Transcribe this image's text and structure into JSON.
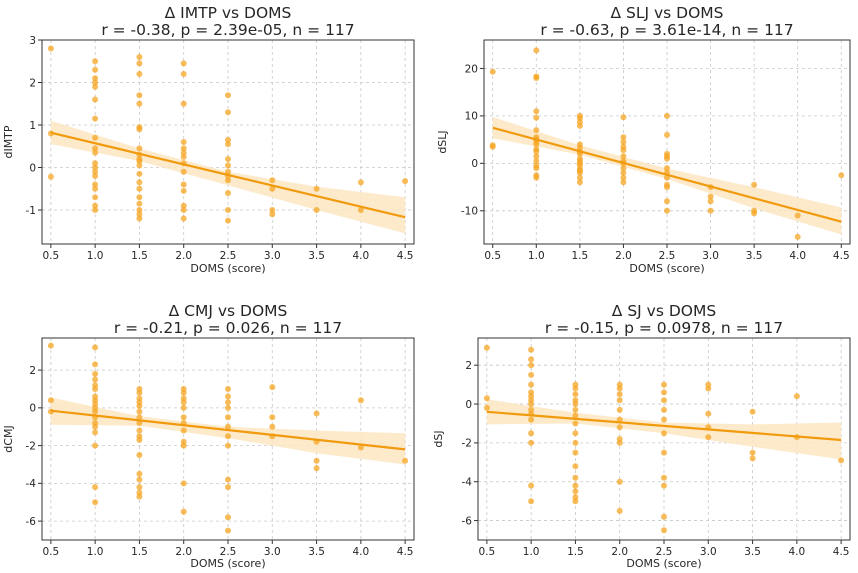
{
  "colors": {
    "point": "#f5a623",
    "line": "#f29a0d",
    "band": "#fde6c2"
  },
  "chart_data": [
    {
      "type": "scatter",
      "title_line1": "Δ IMTP vs DOMS",
      "title_line2": "r = -0.38, p = 2.39e-05, n = 117",
      "xlabel": "DOMS (score)",
      "ylabel": "dIMTP",
      "xlim": [
        0.4,
        4.6
      ],
      "ylim": [
        -1.8,
        3.0
      ],
      "xticks": [
        0.5,
        1.0,
        1.5,
        2.0,
        2.5,
        3.0,
        3.5,
        4.0,
        4.5
      ],
      "yticks": [
        -1,
        0,
        1,
        2,
        3
      ],
      "grid": true,
      "regression": {
        "x": [
          0.5,
          4.5
        ],
        "y": [
          0.82,
          -1.17
        ]
      },
      "band": {
        "x": [
          0.5,
          1.5,
          2.5,
          3.5,
          4.5
        ],
        "upper": [
          1.1,
          0.45,
          -0.1,
          -0.45,
          -0.7
        ],
        "lower": [
          0.55,
          0.15,
          -0.42,
          -1.0,
          -1.55
        ]
      },
      "points": [
        [
          0.5,
          2.8
        ],
        [
          0.5,
          0.8
        ],
        [
          0.5,
          -0.22
        ],
        [
          1.0,
          2.5
        ],
        [
          1.0,
          2.3
        ],
        [
          1.0,
          2.1
        ],
        [
          1.0,
          2.0
        ],
        [
          1.0,
          1.9
        ],
        [
          1.0,
          1.6
        ],
        [
          1.0,
          1.15
        ],
        [
          1.0,
          0.7
        ],
        [
          1.0,
          0.45
        ],
        [
          1.0,
          0.35
        ],
        [
          1.0,
          0.1
        ],
        [
          1.0,
          0.0
        ],
        [
          1.0,
          -0.1
        ],
        [
          1.0,
          -0.2
        ],
        [
          1.0,
          -0.4
        ],
        [
          1.0,
          -0.5
        ],
        [
          1.0,
          -0.7
        ],
        [
          1.0,
          -0.9
        ],
        [
          1.0,
          -1.0
        ],
        [
          1.5,
          2.6
        ],
        [
          1.5,
          2.45
        ],
        [
          1.5,
          2.2
        ],
        [
          1.5,
          1.7
        ],
        [
          1.5,
          1.5
        ],
        [
          1.5,
          0.95
        ],
        [
          1.5,
          0.9
        ],
        [
          1.5,
          0.45
        ],
        [
          1.5,
          0.3
        ],
        [
          1.5,
          0.2
        ],
        [
          1.5,
          0.15
        ],
        [
          1.5,
          0.05
        ],
        [
          1.5,
          -0.15
        ],
        [
          1.5,
          -0.35
        ],
        [
          1.5,
          -0.5
        ],
        [
          1.5,
          -0.7
        ],
        [
          1.5,
          -0.85
        ],
        [
          1.5,
          -1.0
        ],
        [
          1.5,
          -1.1
        ],
        [
          1.5,
          -1.2
        ],
        [
          2.0,
          2.45
        ],
        [
          2.0,
          2.2
        ],
        [
          2.0,
          1.5
        ],
        [
          2.0,
          0.6
        ],
        [
          2.0,
          0.45
        ],
        [
          2.0,
          0.35
        ],
        [
          2.0,
          0.25
        ],
        [
          2.0,
          0.1
        ],
        [
          2.0,
          -0.1
        ],
        [
          2.0,
          -0.4
        ],
        [
          2.0,
          -0.55
        ],
        [
          2.0,
          -0.9
        ],
        [
          2.0,
          -1.0
        ],
        [
          2.0,
          -1.2
        ],
        [
          2.5,
          1.7
        ],
        [
          2.5,
          1.3
        ],
        [
          2.5,
          0.65
        ],
        [
          2.5,
          0.55
        ],
        [
          2.5,
          0.2
        ],
        [
          2.5,
          0.05
        ],
        [
          2.5,
          -0.1
        ],
        [
          2.5,
          -0.2
        ],
        [
          2.5,
          -0.3
        ],
        [
          2.5,
          -0.6
        ],
        [
          2.5,
          -1.0
        ],
        [
          2.5,
          -1.25
        ],
        [
          3.0,
          -0.3
        ],
        [
          3.0,
          -0.5
        ],
        [
          3.0,
          -1.0
        ],
        [
          3.0,
          -1.1
        ],
        [
          3.5,
          -0.5
        ],
        [
          3.5,
          -1.0
        ],
        [
          4.0,
          -0.35
        ],
        [
          4.0,
          -1.0
        ],
        [
          4.5,
          -0.32
        ]
      ]
    },
    {
      "type": "scatter",
      "title_line1": "Δ SLJ vs DOMS",
      "title_line2": "r = -0.63, p = 3.61e-14, n = 117",
      "xlabel": "DOMS (score)",
      "ylabel": "dSLJ",
      "xlim": [
        0.4,
        4.6
      ],
      "ylim": [
        -17.0,
        26.0
      ],
      "xticks": [
        0.5,
        1.0,
        1.5,
        2.0,
        2.5,
        3.0,
        3.5,
        4.0,
        4.5
      ],
      "yticks": [
        -10,
        0,
        10,
        20
      ],
      "grid": true,
      "regression": {
        "x": [
          0.5,
          4.5
        ],
        "y": [
          7.5,
          -12.3
        ]
      },
      "band": {
        "x": [
          0.5,
          1.5,
          2.5,
          3.5,
          4.5
        ],
        "upper": [
          9.8,
          3.8,
          -1.1,
          -5.0,
          -9.3
        ],
        "lower": [
          5.3,
          1.8,
          -3.3,
          -9.5,
          -15.0
        ]
      },
      "points": [
        [
          0.5,
          19.3
        ],
        [
          0.5,
          3.8
        ],
        [
          0.5,
          3.5
        ],
        [
          1.0,
          23.8
        ],
        [
          1.0,
          18.3
        ],
        [
          1.0,
          18.0
        ],
        [
          1.0,
          11.0
        ],
        [
          1.0,
          9.6
        ],
        [
          1.0,
          7.0
        ],
        [
          1.0,
          5.5
        ],
        [
          1.0,
          5.0
        ],
        [
          1.0,
          4.5
        ],
        [
          1.0,
          4.0
        ],
        [
          1.0,
          3.0
        ],
        [
          1.0,
          2.5
        ],
        [
          1.0,
          1.5
        ],
        [
          1.0,
          0.5
        ],
        [
          1.0,
          -0.5
        ],
        [
          1.0,
          -1.0
        ],
        [
          1.0,
          -2.5
        ],
        [
          1.0,
          -3.0
        ],
        [
          1.5,
          10.0
        ],
        [
          1.5,
          9.5
        ],
        [
          1.5,
          8.7
        ],
        [
          1.5,
          7.9
        ],
        [
          1.5,
          4.0
        ],
        [
          1.5,
          3.3
        ],
        [
          1.5,
          2.5
        ],
        [
          1.5,
          2.0
        ],
        [
          1.5,
          1.0
        ],
        [
          1.5,
          0.5
        ],
        [
          1.5,
          0.0
        ],
        [
          1.5,
          -0.5
        ],
        [
          1.5,
          -1.3
        ],
        [
          1.5,
          -1.5
        ],
        [
          1.5,
          -2.0
        ],
        [
          1.5,
          -3.0
        ],
        [
          1.5,
          -4.0
        ],
        [
          2.0,
          9.7
        ],
        [
          2.0,
          5.5
        ],
        [
          2.0,
          4.5
        ],
        [
          2.0,
          3.5
        ],
        [
          2.0,
          2.8
        ],
        [
          2.0,
          1.5
        ],
        [
          2.0,
          0.5
        ],
        [
          2.0,
          0.0
        ],
        [
          2.0,
          -1.0
        ],
        [
          2.0,
          -2.0
        ],
        [
          2.0,
          -3.0
        ],
        [
          2.0,
          -4.0
        ],
        [
          2.5,
          10.0
        ],
        [
          2.5,
          6.0
        ],
        [
          2.5,
          2.0
        ],
        [
          2.5,
          1.5
        ],
        [
          2.5,
          1.0
        ],
        [
          2.5,
          -1.0
        ],
        [
          2.5,
          -2.0
        ],
        [
          2.5,
          -3.0
        ],
        [
          2.5,
          -4.5
        ],
        [
          2.5,
          -5.0
        ],
        [
          2.5,
          -8.0
        ],
        [
          2.5,
          -10.0
        ],
        [
          3.0,
          -5.0
        ],
        [
          3.0,
          -7.0
        ],
        [
          3.0,
          -8.0
        ],
        [
          3.0,
          -10.0
        ],
        [
          3.5,
          -4.5
        ],
        [
          3.5,
          -10.0
        ],
        [
          3.5,
          -10.5
        ],
        [
          4.0,
          -11.0
        ],
        [
          4.0,
          -15.5
        ],
        [
          4.5,
          -2.5
        ]
      ]
    },
    {
      "type": "scatter",
      "title_line1": "Δ CMJ vs DOMS",
      "title_line2": "r = -0.21, p = 0.026, n = 117",
      "xlabel": "DOMS (score)",
      "ylabel": "dCMJ",
      "xlim": [
        0.4,
        4.6
      ],
      "ylim": [
        -7.0,
        3.7
      ],
      "xticks": [
        0.5,
        1.0,
        1.5,
        2.0,
        2.5,
        3.0,
        3.5,
        4.0,
        4.5
      ],
      "yticks": [
        -6,
        -4,
        -2,
        0,
        2
      ],
      "grid": true,
      "regression": {
        "x": [
          0.5,
          4.5
        ],
        "y": [
          -0.15,
          -2.2
        ]
      },
      "band": {
        "x": [
          0.5,
          1.5,
          2.5,
          3.5,
          4.5
        ],
        "upper": [
          0.55,
          -0.45,
          -1.0,
          -1.2,
          -1.35
        ],
        "lower": [
          -0.9,
          -0.95,
          -1.6,
          -2.4,
          -3.0
        ]
      },
      "points": [
        [
          0.5,
          3.3
        ],
        [
          0.5,
          0.4
        ],
        [
          0.5,
          -0.2
        ],
        [
          1.0,
          3.2
        ],
        [
          1.0,
          2.3
        ],
        [
          1.0,
          1.8
        ],
        [
          1.0,
          1.5
        ],
        [
          1.0,
          1.2
        ],
        [
          1.0,
          1.0
        ],
        [
          1.0,
          0.6
        ],
        [
          1.0,
          0.4
        ],
        [
          1.0,
          0.2
        ],
        [
          1.0,
          0.0
        ],
        [
          1.0,
          -0.2
        ],
        [
          1.0,
          -0.5
        ],
        [
          1.0,
          -0.8
        ],
        [
          1.0,
          -1.0
        ],
        [
          1.0,
          -1.3
        ],
        [
          1.0,
          -2.0
        ],
        [
          1.0,
          -4.2
        ],
        [
          1.0,
          -5.0
        ],
        [
          1.5,
          1.0
        ],
        [
          1.5,
          0.8
        ],
        [
          1.5,
          0.5
        ],
        [
          1.5,
          0.3
        ],
        [
          1.5,
          0.1
        ],
        [
          1.5,
          -0.2
        ],
        [
          1.5,
          -0.5
        ],
        [
          1.5,
          -0.8
        ],
        [
          1.5,
          -1.2
        ],
        [
          1.5,
          -1.5
        ],
        [
          1.5,
          -1.7
        ],
        [
          1.5,
          -2.5
        ],
        [
          1.5,
          -3.5
        ],
        [
          1.5,
          -3.8
        ],
        [
          1.5,
          -4.2
        ],
        [
          1.5,
          -4.5
        ],
        [
          1.5,
          -4.7
        ],
        [
          2.0,
          1.0
        ],
        [
          2.0,
          0.8
        ],
        [
          2.0,
          0.5
        ],
        [
          2.0,
          0.3
        ],
        [
          2.0,
          0.0
        ],
        [
          2.0,
          -0.5
        ],
        [
          2.0,
          -0.8
        ],
        [
          2.0,
          -1.2
        ],
        [
          2.0,
          -1.8
        ],
        [
          2.0,
          -2.0
        ],
        [
          2.0,
          -4.0
        ],
        [
          2.0,
          -5.5
        ],
        [
          2.5,
          1.0
        ],
        [
          2.5,
          0.6
        ],
        [
          2.5,
          0.3
        ],
        [
          2.5,
          0.0
        ],
        [
          2.5,
          -0.5
        ],
        [
          2.5,
          -1.0
        ],
        [
          2.5,
          -1.5
        ],
        [
          2.5,
          -2.0
        ],
        [
          2.5,
          -3.8
        ],
        [
          2.5,
          -4.2
        ],
        [
          2.5,
          -5.8
        ],
        [
          2.5,
          -6.5
        ],
        [
          3.0,
          1.1
        ],
        [
          3.0,
          -0.5
        ],
        [
          3.0,
          -1.0
        ],
        [
          3.0,
          -1.5
        ],
        [
          3.5,
          -0.3
        ],
        [
          3.5,
          -1.8
        ],
        [
          3.5,
          -2.8
        ],
        [
          3.5,
          -3.2
        ],
        [
          4.0,
          0.4
        ],
        [
          4.0,
          -2.1
        ],
        [
          4.5,
          -2.8
        ]
      ]
    },
    {
      "type": "scatter",
      "title_line1": "Δ SJ vs DOMS",
      "title_line2": "r = -0.15, p = 0.0978, n = 117",
      "xlabel": "DOMS (score)",
      "ylabel": "dSJ",
      "xlim": [
        0.4,
        4.6
      ],
      "ylim": [
        -7.0,
        3.4
      ],
      "xticks": [
        0.5,
        1.0,
        1.5,
        2.0,
        2.5,
        3.0,
        3.5,
        4.0,
        4.5
      ],
      "yticks": [
        -6,
        -4,
        -2,
        0,
        2
      ],
      "grid": true,
      "regression": {
        "x": [
          0.5,
          4.5
        ],
        "y": [
          -0.4,
          -1.85
        ]
      },
      "band": {
        "x": [
          0.5,
          1.5,
          2.5,
          3.5,
          4.5
        ],
        "upper": [
          0.25,
          -0.45,
          -0.95,
          -1.05,
          -0.95
        ],
        "lower": [
          -1.05,
          -1.0,
          -1.5,
          -2.2,
          -2.85
        ]
      },
      "points": [
        [
          0.5,
          2.9
        ],
        [
          0.5,
          0.3
        ],
        [
          0.5,
          -0.2
        ],
        [
          1.0,
          2.8
        ],
        [
          1.0,
          2.3
        ],
        [
          1.0,
          2.0
        ],
        [
          1.0,
          1.5
        ],
        [
          1.0,
          1.0
        ],
        [
          1.0,
          0.6
        ],
        [
          1.0,
          0.4
        ],
        [
          1.0,
          0.2
        ],
        [
          1.0,
          0.0
        ],
        [
          1.0,
          -0.3
        ],
        [
          1.0,
          -0.5
        ],
        [
          1.0,
          -0.8
        ],
        [
          1.0,
          -1.5
        ],
        [
          1.0,
          -2.0
        ],
        [
          1.0,
          -4.2
        ],
        [
          1.0,
          -5.0
        ],
        [
          1.5,
          1.0
        ],
        [
          1.5,
          0.8
        ],
        [
          1.5,
          0.5
        ],
        [
          1.5,
          0.2
        ],
        [
          1.5,
          0.0
        ],
        [
          1.5,
          -0.3
        ],
        [
          1.5,
          -0.6
        ],
        [
          1.5,
          -1.0
        ],
        [
          1.5,
          -1.5
        ],
        [
          1.5,
          -2.0
        ],
        [
          1.5,
          -2.5
        ],
        [
          1.5,
          -3.2
        ],
        [
          1.5,
          -3.8
        ],
        [
          1.5,
          -4.2
        ],
        [
          1.5,
          -4.5
        ],
        [
          1.5,
          -4.8
        ],
        [
          1.5,
          -5.0
        ],
        [
          2.0,
          1.0
        ],
        [
          2.0,
          0.8
        ],
        [
          2.0,
          0.5
        ],
        [
          2.0,
          0.2
        ],
        [
          2.0,
          -0.3
        ],
        [
          2.0,
          -0.8
        ],
        [
          2.0,
          -1.2
        ],
        [
          2.0,
          -1.8
        ],
        [
          2.0,
          -2.0
        ],
        [
          2.0,
          -4.0
        ],
        [
          2.0,
          -5.5
        ],
        [
          2.5,
          1.0
        ],
        [
          2.5,
          0.6
        ],
        [
          2.5,
          0.2
        ],
        [
          2.5,
          -0.3
        ],
        [
          2.5,
          -0.8
        ],
        [
          2.5,
          -1.5
        ],
        [
          2.5,
          -2.5
        ],
        [
          2.5,
          -3.8
        ],
        [
          2.5,
          -4.2
        ],
        [
          2.5,
          -5.8
        ],
        [
          2.5,
          -6.5
        ],
        [
          3.0,
          1.0
        ],
        [
          3.0,
          0.8
        ],
        [
          3.0,
          -0.5
        ],
        [
          3.0,
          -1.2
        ],
        [
          3.0,
          -1.7
        ],
        [
          3.5,
          -0.4
        ],
        [
          3.5,
          -2.5
        ],
        [
          3.5,
          -2.8
        ],
        [
          4.0,
          0.4
        ],
        [
          4.0,
          -1.7
        ],
        [
          4.5,
          -2.9
        ]
      ]
    }
  ]
}
